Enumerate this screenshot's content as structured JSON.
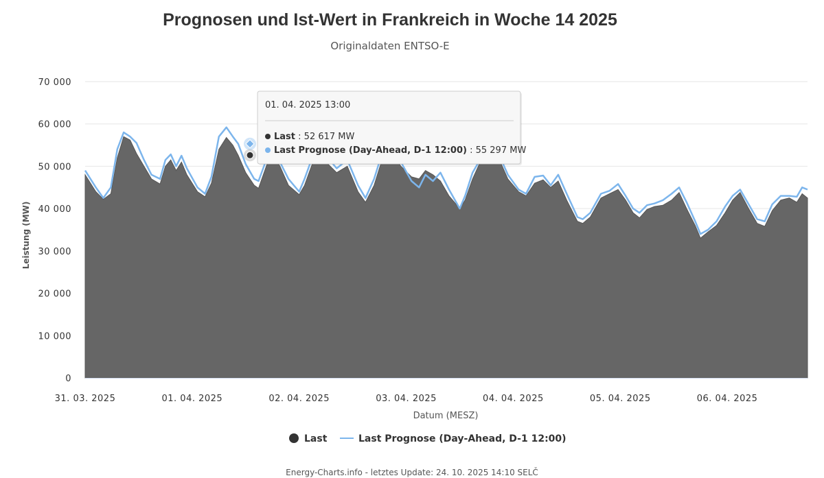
{
  "title": "Prognosen und Ist-Wert in Frankreich in Woche 14 2025",
  "subtitle": "Originaldaten ENTSO-E",
  "footer": "Energy-Charts.info - letztes Update: 24. 10. 2025 14:10 SELČ",
  "colors": {
    "last": "#666666",
    "forecast": "#7cb5ec",
    "grid": "#e6e6e6",
    "text": "#333333"
  },
  "chart_data": {
    "type": "area",
    "xlabel": "Datum (MESZ)",
    "ylabel": "Leistung (MW)",
    "ylim": [
      0,
      70000
    ],
    "yticks": [
      0,
      10000,
      20000,
      30000,
      40000,
      50000,
      60000,
      70000
    ],
    "ytick_labels": [
      "0",
      "10 000",
      "20 000",
      "30 000",
      "40 000",
      "50 000",
      "60 000",
      "70 000"
    ],
    "xlim_days": [
      0,
      6.75
    ],
    "xtick_labels": [
      "31. 03. 2025",
      "01. 04. 2025",
      "02. 04. 2025",
      "03. 04. 2025",
      "04. 04. 2025",
      "05. 04. 2025",
      "06. 04. 2025"
    ],
    "x_start_date": "31. 03. 2025 00:00",
    "grid": true,
    "legend_position": "bottom-center",
    "series": [
      {
        "name": "Last",
        "kind": "area",
        "color": "#666666",
        "points": [
          [
            0.0,
            48000
          ],
          [
            0.1,
            44000
          ],
          [
            0.17,
            42200
          ],
          [
            0.24,
            43500
          ],
          [
            0.3,
            52000
          ],
          [
            0.36,
            57000
          ],
          [
            0.42,
            56200
          ],
          [
            0.48,
            53000
          ],
          [
            0.55,
            50000
          ],
          [
            0.62,
            47000
          ],
          [
            0.7,
            45800
          ],
          [
            0.75,
            50000
          ],
          [
            0.8,
            51500
          ],
          [
            0.85,
            49000
          ],
          [
            0.9,
            51000
          ],
          [
            0.95,
            48000
          ],
          [
            1.05,
            44000
          ],
          [
            1.12,
            42800
          ],
          [
            1.18,
            46000
          ],
          [
            1.25,
            54000
          ],
          [
            1.32,
            56800
          ],
          [
            1.38,
            55000
          ],
          [
            1.43,
            52600
          ],
          [
            1.5,
            48500
          ],
          [
            1.58,
            45500
          ],
          [
            1.62,
            44800
          ],
          [
            1.7,
            50500
          ],
          [
            1.76,
            52500
          ],
          [
            1.82,
            50000
          ],
          [
            1.9,
            45500
          ],
          [
            2.0,
            43300
          ],
          [
            2.05,
            45500
          ],
          [
            2.15,
            52500
          ],
          [
            2.25,
            51000
          ],
          [
            2.35,
            48500
          ],
          [
            2.45,
            50000
          ],
          [
            2.55,
            44000
          ],
          [
            2.62,
            41500
          ],
          [
            2.7,
            45500
          ],
          [
            2.78,
            52000
          ],
          [
            2.86,
            53500
          ],
          [
            2.95,
            50000
          ],
          [
            3.05,
            47500
          ],
          [
            3.12,
            47000
          ],
          [
            3.18,
            49000
          ],
          [
            3.25,
            48000
          ],
          [
            3.32,
            46500
          ],
          [
            3.4,
            43000
          ],
          [
            3.5,
            40000
          ],
          [
            3.55,
            42000
          ],
          [
            3.62,
            47000
          ],
          [
            3.7,
            51500
          ],
          [
            3.76,
            52000
          ],
          [
            3.82,
            50500
          ],
          [
            3.88,
            51000
          ],
          [
            3.95,
            47000
          ],
          [
            4.05,
            44000
          ],
          [
            4.12,
            43000
          ],
          [
            4.2,
            46000
          ],
          [
            4.28,
            46800
          ],
          [
            4.35,
            45000
          ],
          [
            4.42,
            46500
          ],
          [
            4.5,
            42000
          ],
          [
            4.6,
            37000
          ],
          [
            4.65,
            36500
          ],
          [
            4.72,
            38000
          ],
          [
            4.82,
            42500
          ],
          [
            4.9,
            43500
          ],
          [
            4.98,
            44500
          ],
          [
            5.05,
            42000
          ],
          [
            5.12,
            39000
          ],
          [
            5.18,
            37800
          ],
          [
            5.25,
            39800
          ],
          [
            5.32,
            40500
          ],
          [
            5.4,
            40800
          ],
          [
            5.48,
            42000
          ],
          [
            5.55,
            43800
          ],
          [
            5.62,
            40000
          ],
          [
            5.7,
            36000
          ],
          [
            5.75,
            33000
          ],
          [
            5.82,
            34500
          ],
          [
            5.9,
            36000
          ],
          [
            5.98,
            39000
          ],
          [
            6.05,
            42000
          ],
          [
            6.12,
            43800
          ],
          [
            6.2,
            40000
          ],
          [
            6.28,
            36500
          ],
          [
            6.35,
            35800
          ],
          [
            6.42,
            39500
          ],
          [
            6.5,
            42000
          ],
          [
            6.58,
            42500
          ],
          [
            6.65,
            41500
          ],
          [
            6.7,
            43500
          ],
          [
            6.75,
            42500
          ]
        ]
      },
      {
        "name": "Last Prognose (Day-Ahead, D-1 12:00)",
        "kind": "line",
        "color": "#7cb5ec",
        "points": [
          [
            0.0,
            49000
          ],
          [
            0.1,
            45000
          ],
          [
            0.17,
            42500
          ],
          [
            0.24,
            45000
          ],
          [
            0.3,
            54000
          ],
          [
            0.36,
            58000
          ],
          [
            0.42,
            57000
          ],
          [
            0.48,
            55500
          ],
          [
            0.55,
            51500
          ],
          [
            0.62,
            48000
          ],
          [
            0.7,
            47000
          ],
          [
            0.75,
            51500
          ],
          [
            0.8,
            52800
          ],
          [
            0.85,
            50000
          ],
          [
            0.9,
            52500
          ],
          [
            0.95,
            49500
          ],
          [
            1.05,
            45000
          ],
          [
            1.12,
            43500
          ],
          [
            1.18,
            47500
          ],
          [
            1.25,
            57000
          ],
          [
            1.32,
            59200
          ],
          [
            1.38,
            57000
          ],
          [
            1.43,
            55300
          ],
          [
            1.5,
            50500
          ],
          [
            1.58,
            47000
          ],
          [
            1.62,
            46500
          ],
          [
            1.7,
            52000
          ],
          [
            1.76,
            53500
          ],
          [
            1.82,
            51000
          ],
          [
            1.9,
            47000
          ],
          [
            2.0,
            44000
          ],
          [
            2.05,
            47000
          ],
          [
            2.15,
            54000
          ],
          [
            2.25,
            52500
          ],
          [
            2.35,
            49500
          ],
          [
            2.45,
            51500
          ],
          [
            2.55,
            45500
          ],
          [
            2.62,
            42500
          ],
          [
            2.7,
            47000
          ],
          [
            2.78,
            53500
          ],
          [
            2.86,
            54500
          ],
          [
            2.95,
            51000
          ],
          [
            3.05,
            46500
          ],
          [
            3.12,
            45000
          ],
          [
            3.18,
            48000
          ],
          [
            3.25,
            46500
          ],
          [
            3.32,
            48500
          ],
          [
            3.4,
            44500
          ],
          [
            3.5,
            40000
          ],
          [
            3.55,
            43000
          ],
          [
            3.62,
            48500
          ],
          [
            3.7,
            52000
          ],
          [
            3.76,
            53000
          ],
          [
            3.82,
            51500
          ],
          [
            3.88,
            52000
          ],
          [
            3.95,
            48000
          ],
          [
            4.05,
            44500
          ],
          [
            4.12,
            43500
          ],
          [
            4.2,
            47500
          ],
          [
            4.28,
            47800
          ],
          [
            4.35,
            45500
          ],
          [
            4.42,
            48000
          ],
          [
            4.5,
            43500
          ],
          [
            4.6,
            38000
          ],
          [
            4.65,
            37500
          ],
          [
            4.72,
            39000
          ],
          [
            4.82,
            43500
          ],
          [
            4.9,
            44200
          ],
          [
            4.98,
            45800
          ],
          [
            5.05,
            43000
          ],
          [
            5.12,
            40000
          ],
          [
            5.18,
            39000
          ],
          [
            5.25,
            40800
          ],
          [
            5.32,
            41200
          ],
          [
            5.4,
            42000
          ],
          [
            5.48,
            43500
          ],
          [
            5.55,
            45000
          ],
          [
            5.62,
            41500
          ],
          [
            5.7,
            37000
          ],
          [
            5.75,
            34000
          ],
          [
            5.82,
            35000
          ],
          [
            5.9,
            37000
          ],
          [
            5.98,
            40500
          ],
          [
            6.05,
            43000
          ],
          [
            6.12,
            44500
          ],
          [
            6.2,
            41000
          ],
          [
            6.28,
            37500
          ],
          [
            6.35,
            37000
          ],
          [
            6.42,
            41000
          ],
          [
            6.5,
            43000
          ],
          [
            6.58,
            43000
          ],
          [
            6.65,
            42800
          ],
          [
            6.7,
            45000
          ],
          [
            6.75,
            44500
          ]
        ]
      }
    ],
    "tooltip": {
      "x": 1.54,
      "header": "01. 04. 2025 13:00",
      "rows": [
        {
          "series": "Last",
          "label": "Last",
          "value": "52 617 MW",
          "y": 52617
        },
        {
          "series": "Last Prognose (Day-Ahead, D-1 12:00)",
          "label": "Last Prognose (Day-Ahead, D-1 12:00)",
          "value": "55 297 MW",
          "y": 55297
        }
      ]
    }
  }
}
